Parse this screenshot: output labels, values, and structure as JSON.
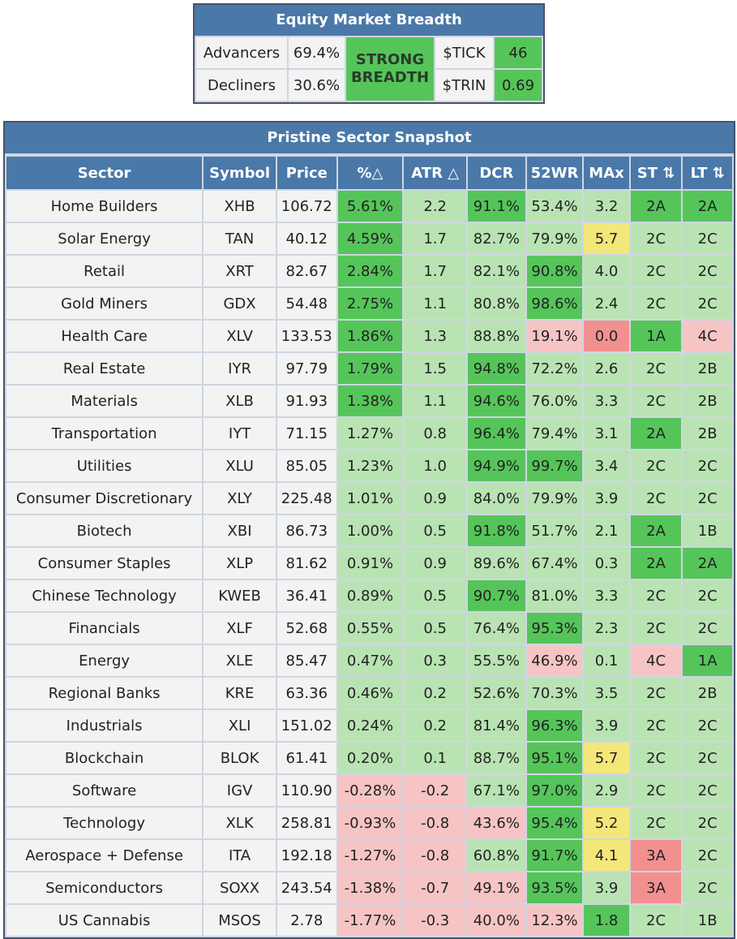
{
  "breadth": {
    "title": "Equity Market Breadth",
    "advancers_label": "Advancers",
    "advancers_value": "69.4%",
    "decliners_label": "Decliners",
    "decliners_value": "30.6%",
    "status_line1": "STRONG",
    "status_line2": "BREADTH",
    "tick_label": "$TICK",
    "tick_value": "46",
    "trin_label": "$TRIN",
    "trin_value": "0.69"
  },
  "snapshot": {
    "title": "Pristine Sector Snapshot",
    "columns": [
      "Sector",
      "Symbol",
      "Price",
      "%△",
      "ATR △",
      "DCR",
      "52WR",
      "MAx",
      "ST ⇅",
      "LT ⇅"
    ],
    "colors": {
      "header": "#4a78a8",
      "strong_green": "#55c55a",
      "light_green": "#b9e3b3",
      "pink": "#f6c4c4",
      "red": "#f29090",
      "yellow": "#f3e77a",
      "neutral": "#f3f3f3"
    },
    "rows": [
      {
        "sector": "Home Builders",
        "symbol": "XHB",
        "price": "106.72",
        "pct": "5.61%",
        "atr": "2.2",
        "dcr": "91.1%",
        "wr": "53.4%",
        "max": "3.2",
        "st": "2A",
        "lt": "2A",
        "c": [
          "w",
          "w",
          "w",
          "g",
          "lg",
          "g",
          "lg",
          "lg",
          "g",
          "g"
        ]
      },
      {
        "sector": "Solar Energy",
        "symbol": "TAN",
        "price": "40.12",
        "pct": "4.59%",
        "atr": "1.7",
        "dcr": "82.7%",
        "wr": "79.9%",
        "max": "5.7",
        "st": "2C",
        "lt": "2C",
        "c": [
          "w",
          "w",
          "w",
          "g",
          "lg",
          "lg",
          "lg",
          "y",
          "lg",
          "lg"
        ]
      },
      {
        "sector": "Retail",
        "symbol": "XRT",
        "price": "82.67",
        "pct": "2.84%",
        "atr": "1.7",
        "dcr": "82.1%",
        "wr": "90.8%",
        "max": "4.0",
        "st": "2C",
        "lt": "2C",
        "c": [
          "w",
          "w",
          "w",
          "g",
          "lg",
          "lg",
          "g",
          "lg",
          "lg",
          "lg"
        ]
      },
      {
        "sector": "Gold Miners",
        "symbol": "GDX",
        "price": "54.48",
        "pct": "2.75%",
        "atr": "1.1",
        "dcr": "80.8%",
        "wr": "98.6%",
        "max": "2.4",
        "st": "2C",
        "lt": "2C",
        "c": [
          "w",
          "w",
          "w",
          "g",
          "lg",
          "lg",
          "g",
          "lg",
          "lg",
          "lg"
        ]
      },
      {
        "sector": "Health Care",
        "symbol": "XLV",
        "price": "133.53",
        "pct": "1.86%",
        "atr": "1.3",
        "dcr": "88.8%",
        "wr": "19.1%",
        "max": "0.0",
        "st": "1A",
        "lt": "4C",
        "c": [
          "w",
          "w",
          "w",
          "g",
          "lg",
          "lg",
          "p",
          "r",
          "g",
          "p"
        ]
      },
      {
        "sector": "Real Estate",
        "symbol": "IYR",
        "price": "97.79",
        "pct": "1.79%",
        "atr": "1.5",
        "dcr": "94.8%",
        "wr": "72.2%",
        "max": "2.6",
        "st": "2C",
        "lt": "2B",
        "c": [
          "w",
          "w",
          "w",
          "g",
          "lg",
          "g",
          "lg",
          "lg",
          "lg",
          "lg"
        ]
      },
      {
        "sector": "Materials",
        "symbol": "XLB",
        "price": "91.93",
        "pct": "1.38%",
        "atr": "1.1",
        "dcr": "94.6%",
        "wr": "76.0%",
        "max": "3.3",
        "st": "2C",
        "lt": "2B",
        "c": [
          "w",
          "w",
          "w",
          "g",
          "lg",
          "g",
          "lg",
          "lg",
          "lg",
          "lg"
        ]
      },
      {
        "sector": "Transportation",
        "symbol": "IYT",
        "price": "71.15",
        "pct": "1.27%",
        "atr": "0.8",
        "dcr": "96.4%",
        "wr": "79.4%",
        "max": "3.1",
        "st": "2A",
        "lt": "2B",
        "c": [
          "w",
          "w",
          "w",
          "lg",
          "lg",
          "g",
          "lg",
          "lg",
          "g",
          "lg"
        ]
      },
      {
        "sector": "Utilities",
        "symbol": "XLU",
        "price": "85.05",
        "pct": "1.23%",
        "atr": "1.0",
        "dcr": "94.9%",
        "wr": "99.7%",
        "max": "3.4",
        "st": "2C",
        "lt": "2C",
        "c": [
          "w",
          "w",
          "w",
          "lg",
          "lg",
          "g",
          "g",
          "lg",
          "lg",
          "lg"
        ]
      },
      {
        "sector": "Consumer Discretionary",
        "symbol": "XLY",
        "price": "225.48",
        "pct": "1.01%",
        "atr": "0.9",
        "dcr": "84.0%",
        "wr": "79.9%",
        "max": "3.9",
        "st": "2C",
        "lt": "2C",
        "c": [
          "w",
          "w",
          "w",
          "lg",
          "lg",
          "lg",
          "lg",
          "lg",
          "lg",
          "lg"
        ]
      },
      {
        "sector": "Biotech",
        "symbol": "XBI",
        "price": "86.73",
        "pct": "1.00%",
        "atr": "0.5",
        "dcr": "91.8%",
        "wr": "51.7%",
        "max": "2.1",
        "st": "2A",
        "lt": "1B",
        "c": [
          "w",
          "w",
          "w",
          "lg",
          "lg",
          "g",
          "lg",
          "lg",
          "g",
          "lg"
        ]
      },
      {
        "sector": "Consumer Staples",
        "symbol": "XLP",
        "price": "81.62",
        "pct": "0.91%",
        "atr": "0.9",
        "dcr": "89.6%",
        "wr": "67.4%",
        "max": "0.3",
        "st": "2A",
        "lt": "2A",
        "c": [
          "w",
          "w",
          "w",
          "lg",
          "lg",
          "lg",
          "lg",
          "lg",
          "g",
          "g"
        ]
      },
      {
        "sector": "Chinese Technology",
        "symbol": "KWEB",
        "price": "36.41",
        "pct": "0.89%",
        "atr": "0.5",
        "dcr": "90.7%",
        "wr": "81.0%",
        "max": "3.3",
        "st": "2C",
        "lt": "2C",
        "c": [
          "w",
          "w",
          "w",
          "lg",
          "lg",
          "g",
          "lg",
          "lg",
          "lg",
          "lg"
        ]
      },
      {
        "sector": "Financials",
        "symbol": "XLF",
        "price": "52.68",
        "pct": "0.55%",
        "atr": "0.5",
        "dcr": "76.4%",
        "wr": "95.3%",
        "max": "2.3",
        "st": "2C",
        "lt": "2C",
        "c": [
          "w",
          "w",
          "w",
          "lg",
          "lg",
          "lg",
          "g",
          "lg",
          "lg",
          "lg"
        ]
      },
      {
        "sector": "Energy",
        "symbol": "XLE",
        "price": "85.47",
        "pct": "0.47%",
        "atr": "0.3",
        "dcr": "55.5%",
        "wr": "46.9%",
        "max": "0.1",
        "st": "4C",
        "lt": "1A",
        "c": [
          "w",
          "w",
          "w",
          "lg",
          "lg",
          "lg",
          "p",
          "lg",
          "p",
          "g"
        ]
      },
      {
        "sector": "Regional Banks",
        "symbol": "KRE",
        "price": "63.36",
        "pct": "0.46%",
        "atr": "0.2",
        "dcr": "52.6%",
        "wr": "70.3%",
        "max": "3.5",
        "st": "2C",
        "lt": "2B",
        "c": [
          "w",
          "w",
          "w",
          "lg",
          "lg",
          "lg",
          "lg",
          "lg",
          "lg",
          "lg"
        ]
      },
      {
        "sector": "Industrials",
        "symbol": "XLI",
        "price": "151.02",
        "pct": "0.24%",
        "atr": "0.2",
        "dcr": "81.4%",
        "wr": "96.3%",
        "max": "3.9",
        "st": "2C",
        "lt": "2C",
        "c": [
          "w",
          "w",
          "w",
          "lg",
          "lg",
          "lg",
          "g",
          "lg",
          "lg",
          "lg"
        ]
      },
      {
        "sector": "Blockchain",
        "symbol": "BLOK",
        "price": "61.41",
        "pct": "0.20%",
        "atr": "0.1",
        "dcr": "88.7%",
        "wr": "95.1%",
        "max": "5.7",
        "st": "2C",
        "lt": "2C",
        "c": [
          "w",
          "w",
          "w",
          "lg",
          "lg",
          "lg",
          "g",
          "y",
          "lg",
          "lg"
        ]
      },
      {
        "sector": "Software",
        "symbol": "IGV",
        "price": "110.90",
        "pct": "-0.28%",
        "atr": "-0.2",
        "dcr": "67.1%",
        "wr": "97.0%",
        "max": "2.9",
        "st": "2C",
        "lt": "2C",
        "c": [
          "w",
          "w",
          "w",
          "p",
          "p",
          "lg",
          "g",
          "lg",
          "lg",
          "lg"
        ]
      },
      {
        "sector": "Technology",
        "symbol": "XLK",
        "price": "258.81",
        "pct": "-0.93%",
        "atr": "-0.8",
        "dcr": "43.6%",
        "wr": "95.4%",
        "max": "5.2",
        "st": "2C",
        "lt": "2C",
        "c": [
          "w",
          "w",
          "w",
          "p",
          "p",
          "p",
          "g",
          "y",
          "lg",
          "lg"
        ]
      },
      {
        "sector": "Aerospace + Defense",
        "symbol": "ITA",
        "price": "192.18",
        "pct": "-1.27%",
        "atr": "-0.8",
        "dcr": "60.8%",
        "wr": "91.7%",
        "max": "4.1",
        "st": "3A",
        "lt": "2C",
        "c": [
          "w",
          "w",
          "w",
          "p",
          "p",
          "lg",
          "g",
          "y",
          "r",
          "lg"
        ]
      },
      {
        "sector": "Semiconductors",
        "symbol": "SOXX",
        "price": "243.54",
        "pct": "-1.38%",
        "atr": "-0.7",
        "dcr": "49.1%",
        "wr": "93.5%",
        "max": "3.9",
        "st": "3A",
        "lt": "2C",
        "c": [
          "w",
          "w",
          "w",
          "p",
          "p",
          "p",
          "g",
          "lg",
          "r",
          "lg"
        ]
      },
      {
        "sector": "US Cannabis",
        "symbol": "MSOS",
        "price": "2.78",
        "pct": "-1.77%",
        "atr": "-0.3",
        "dcr": "40.0%",
        "wr": "12.3%",
        "max": "1.8",
        "st": "2C",
        "lt": "1B",
        "c": [
          "w",
          "w",
          "w",
          "p",
          "p",
          "p",
          "p",
          "g",
          "lg",
          "lg"
        ]
      }
    ]
  }
}
